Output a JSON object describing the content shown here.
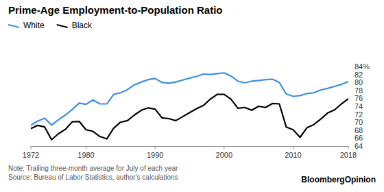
{
  "chart_data": {
    "type": "line",
    "title": "Prime-Age Employment-to-Population Ratio",
    "note": "Note: Trailing three-month average for July of each year",
    "source": "Source: Bureau of Labor Statistics, author's calculations",
    "brand": "BloombergOpinion",
    "x": [
      1972,
      1973,
      1974,
      1975,
      1976,
      1977,
      1978,
      1979,
      1980,
      1981,
      1982,
      1983,
      1984,
      1985,
      1986,
      1987,
      1988,
      1989,
      1990,
      1991,
      1992,
      1993,
      1994,
      1995,
      1996,
      1997,
      1998,
      1999,
      2000,
      2001,
      2002,
      2003,
      2004,
      2005,
      2006,
      2007,
      2008,
      2009,
      2010,
      2011,
      2012,
      2013,
      2014,
      2015,
      2016,
      2017,
      2018
    ],
    "series": [
      {
        "name": "White",
        "color": "#3d8fe0",
        "values": [
          69.2,
          70.3,
          71.0,
          69.3,
          70.6,
          71.8,
          73.2,
          74.8,
          74.5,
          75.6,
          74.6,
          74.6,
          77.0,
          77.4,
          78.2,
          79.4,
          80.1,
          80.7,
          81.0,
          80.0,
          79.8,
          80.1,
          80.6,
          81.1,
          81.5,
          82.1,
          82.0,
          82.2,
          82.4,
          81.6,
          80.3,
          79.9,
          80.3,
          80.5,
          80.7,
          80.8,
          80.0,
          77.1,
          76.5,
          76.7,
          77.2,
          77.4,
          78.1,
          78.5,
          79.0,
          79.5,
          80.2
        ]
      },
      {
        "name": "Black",
        "color": "#000000",
        "values": [
          68.4,
          69.2,
          68.8,
          65.6,
          67.1,
          68.2,
          70.1,
          70.2,
          68.1,
          67.7,
          66.4,
          65.8,
          68.5,
          70.0,
          70.4,
          71.8,
          73.0,
          73.6,
          73.3,
          71.1,
          70.9,
          70.4,
          71.4,
          72.4,
          73.4,
          74.2,
          75.8,
          77.0,
          77.0,
          75.8,
          73.5,
          73.7,
          73.0,
          74.0,
          73.7,
          74.7,
          74.6,
          68.8,
          68.1,
          66.2,
          68.6,
          69.4,
          70.8,
          72.3,
          73.1,
          74.6,
          75.9
        ]
      }
    ],
    "xlim": [
      1972,
      2018
    ],
    "xticks": [
      1972,
      1980,
      1990,
      2000,
      2010,
      2018
    ],
    "ylim": [
      64,
      84
    ],
    "yticks": [
      64,
      66,
      68,
      70,
      72,
      74,
      76,
      78,
      80,
      82,
      {
        "value": 84,
        "label": "84%"
      }
    ],
    "grid": false,
    "legend": "top-left"
  }
}
